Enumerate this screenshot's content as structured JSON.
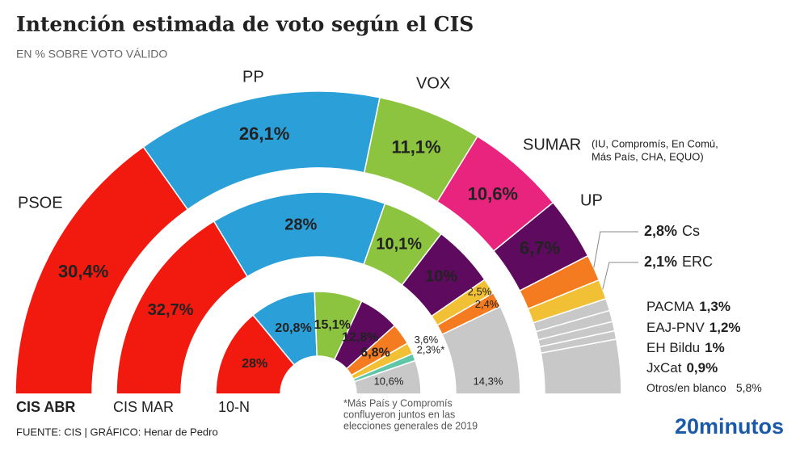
{
  "title": "Intención estimada de voto según el CIS",
  "subtitle": "EN % SOBRE VOTO VÁLIDO",
  "sumar_note": [
    "(IU, Compromís, En Comú,",
    "Más País, CHA, EQUO)"
  ],
  "footnote": [
    "*Más País y Compromís",
    "confluyeron juntos en las",
    "elecciones generales de 2019"
  ],
  "source": "FUENTE: CIS | GRÁFICO: Henar de Pedro",
  "logo": "20minutos",
  "chart_data": [
    {
      "type": "donut",
      "label": "CIS ABR",
      "categories": [
        "PSOE",
        "PP",
        "VOX",
        "SUMAR",
        "UP",
        "Cs",
        "ERC",
        "PACMA",
        "EAJ-PNV",
        "EH Bildu",
        "JxCat",
        "Otros/en blanco"
      ],
      "values": [
        30.4,
        26.1,
        11.1,
        10.6,
        6.7,
        2.8,
        2.1,
        1.3,
        1.2,
        1,
        0.9,
        5.8
      ],
      "value_labels": [
        "30,4%",
        "26,1%",
        "11,1%",
        "10,6%",
        "6,7%",
        "2,8%",
        "2,1%",
        "1,3%",
        "1,2%",
        "1%",
        "0,9%",
        "5,8%"
      ],
      "colors": [
        "#f2190f",
        "#2b9fd8",
        "#8dc43f",
        "#e8247e",
        "#5e0a5e",
        "#f47b20",
        "#f2c034",
        "#c8c8c8",
        "#c8c8c8",
        "#c8c8c8",
        "#c8c8c8",
        "#c8c8c8"
      ]
    },
    {
      "type": "donut",
      "label": "CIS MAR",
      "values": [
        32.7,
        28,
        10.1,
        10,
        2.5,
        2.4,
        14.3
      ],
      "value_labels": [
        "32,7%",
        "28%",
        "10,1%",
        "10%",
        "2,5%",
        "2,4%",
        "14,3%"
      ],
      "colors": [
        "#f2190f",
        "#2b9fd8",
        "#8dc43f",
        "#5e0a5e",
        "#f2c034",
        "#f47b20",
        "#c8c8c8"
      ]
    },
    {
      "type": "donut",
      "label": "10-N",
      "values": [
        28,
        20.8,
        15.1,
        12.8,
        6.8,
        3.6,
        2.3,
        10.6
      ],
      "value_labels": [
        "28%",
        "20,8%",
        "15,1%",
        "12,8%",
        "6,8%",
        "3,6%",
        "2,3%*",
        "10,6%"
      ],
      "colors": [
        "#f2190f",
        "#2b9fd8",
        "#8dc43f",
        "#5e0a5e",
        "#f47b20",
        "#f2c034",
        "#5fc6a8",
        "#c8c8c8"
      ]
    }
  ]
}
